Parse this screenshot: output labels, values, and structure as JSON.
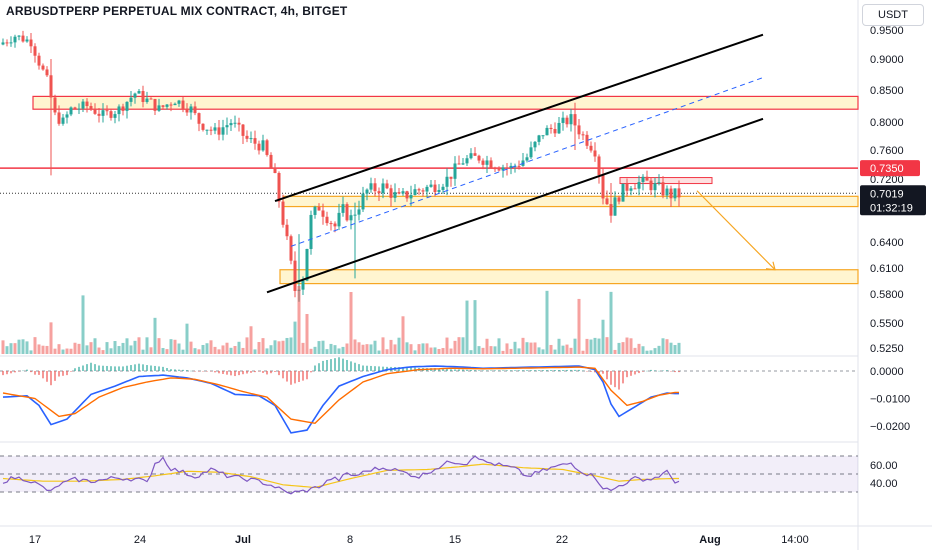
{
  "header": {
    "title": "ARBUSDTPERP PERPETUAL MIX CONTRACT, 4h, BITGET",
    "currency": "USDT"
  },
  "colors": {
    "up": "#26a69a",
    "down": "#ef5350",
    "channel": "#000000",
    "midline": "#2962ff",
    "zone_fill": "#fff3c4",
    "zone_border": "#f6a623",
    "resistance": "#f23645",
    "macd": "#2962ff",
    "signal": "#ff6d00",
    "rsi": "#7e57c2",
    "rsi_ma": "#f5c518"
  },
  "price_axis": {
    "ticks": [
      "0.9500",
      "0.9000",
      "0.8500",
      "0.8000",
      "0.7600",
      "0.7200",
      "0.6400",
      "0.6100",
      "0.5800",
      "0.5500",
      "0.5250"
    ],
    "resistance_label": "0.7350",
    "last_price_label": "0.7019",
    "countdown_label": "01:32:19"
  },
  "macd_axis": {
    "ticks": [
      "0.0000",
      "−0.0100",
      "−0.0200"
    ]
  },
  "rsi_axis": {
    "ticks": [
      "60.00",
      "40.00"
    ]
  },
  "time_axis": {
    "labels": [
      "17",
      "24",
      "Jul",
      "8",
      "15",
      "22",
      "Aug",
      "14:00"
    ],
    "bold": [
      false,
      false,
      true,
      false,
      false,
      false,
      true,
      false
    ]
  },
  "chart_data": [
    {
      "type": "candlestick",
      "name": "ARBUSDTPERP 4h",
      "y_axis": "price (USDT)",
      "x_ticks": [
        "17",
        "24",
        "Jul",
        "8",
        "15",
        "22",
        "Aug",
        "14:00"
      ],
      "key_path": [
        [
          0,
          0.925
        ],
        [
          4,
          0.94
        ],
        [
          8,
          0.93
        ],
        [
          10,
          0.895
        ],
        [
          12,
          0.865
        ],
        [
          14,
          0.81
        ],
        [
          16,
          0.8
        ],
        [
          18,
          0.82
        ],
        [
          22,
          0.825
        ],
        [
          26,
          0.81
        ],
        [
          30,
          0.82
        ],
        [
          34,
          0.845
        ],
        [
          38,
          0.83
        ],
        [
          40,
          0.82
        ],
        [
          44,
          0.835
        ],
        [
          48,
          0.82
        ],
        [
          50,
          0.8
        ],
        [
          54,
          0.785
        ],
        [
          58,
          0.8
        ],
        [
          62,
          0.775
        ],
        [
          66,
          0.765
        ],
        [
          69,
          0.72
        ],
        [
          72,
          0.64
        ],
        [
          74,
          0.585
        ],
        [
          76,
          0.6
        ],
        [
          78,
          0.67
        ],
        [
          80,
          0.685
        ],
        [
          84,
          0.66
        ],
        [
          86,
          0.68
        ],
        [
          88,
          0.67
        ],
        [
          92,
          0.705
        ],
        [
          96,
          0.71
        ],
        [
          100,
          0.695
        ],
        [
          104,
          0.705
        ],
        [
          108,
          0.71
        ],
        [
          112,
          0.72
        ],
        [
          116,
          0.745
        ],
        [
          120,
          0.75
        ],
        [
          124,
          0.74
        ],
        [
          128,
          0.735
        ],
        [
          132,
          0.75
        ],
        [
          136,
          0.785
        ],
        [
          140,
          0.795
        ],
        [
          143,
          0.805
        ],
        [
          146,
          0.78
        ],
        [
          149,
          0.76
        ],
        [
          151,
          0.7
        ],
        [
          153,
          0.68
        ],
        [
          155,
          0.7
        ],
        [
          158,
          0.715
        ],
        [
          162,
          0.715
        ],
        [
          166,
          0.705
        ],
        [
          168,
          0.7
        ]
      ],
      "wick_extremes": [
        {
          "x": 12,
          "low": 0.725,
          "high": 0.9
        },
        {
          "x": 74,
          "low": 0.572,
          "high": 0.65
        },
        {
          "x": 88,
          "low": 0.598,
          "high": 0.69
        },
        {
          "x": 143,
          "low": 0.76,
          "high": 0.83
        },
        {
          "x": 152,
          "low": 0.678,
          "high": 0.715
        }
      ],
      "annotations": {
        "resistance_line": 0.735,
        "last_price": 0.7019,
        "zones": [
          [
            0.82,
            0.84
          ],
          [
            0.685,
            0.698
          ],
          [
            0.592,
            0.608
          ]
        ],
        "channel": {
          "upper": [
            [
              68,
              0.692
            ],
            [
              190,
              0.942
            ]
          ],
          "middle": [
            [
              72,
              0.635
            ],
            [
              190,
              0.87
            ]
          ],
          "lower": [
            [
              66,
              0.582
            ],
            [
              190,
              0.805
            ]
          ]
        },
        "projection_arrow": [
          [
            170,
            0.7
          ],
          [
            188,
            0.608
          ]
        ]
      }
    },
    {
      "type": "bar",
      "name": "Volume",
      "series_note": "relative volume bars coloured by candle direction"
    },
    {
      "type": "line",
      "name": "MACD",
      "y_ticks": [
        "0.0000",
        "−0.0100",
        "−0.0200"
      ],
      "ylim": [
        -0.024,
        0.004
      ],
      "macd_path": [
        [
          0,
          -0.0095
        ],
        [
          6,
          -0.009
        ],
        [
          9,
          -0.0125
        ],
        [
          12,
          -0.0195
        ],
        [
          16,
          -0.0175
        ],
        [
          22,
          -0.0085
        ],
        [
          28,
          -0.0055
        ],
        [
          34,
          -0.002
        ],
        [
          40,
          -0.0015
        ],
        [
          46,
          -0.0025
        ],
        [
          52,
          -0.0045
        ],
        [
          58,
          -0.0085
        ],
        [
          64,
          -0.009
        ],
        [
          68,
          -0.0125
        ],
        [
          72,
          -0.0225
        ],
        [
          76,
          -0.0215
        ],
        [
          80,
          -0.0125
        ],
        [
          84,
          -0.0055
        ],
        [
          90,
          -0.002
        ],
        [
          96,
          0.0005
        ],
        [
          102,
          0.0015
        ],
        [
          108,
          0.0018
        ],
        [
          114,
          0.0015
        ],
        [
          120,
          0.001
        ],
        [
          126,
          0.0012
        ],
        [
          132,
          0.0014
        ],
        [
          138,
          0.0016
        ],
        [
          144,
          0.0018
        ],
        [
          148,
          0.0005
        ],
        [
          150,
          -0.004
        ],
        [
          152,
          -0.012
        ],
        [
          154,
          -0.0165
        ],
        [
          158,
          -0.013
        ],
        [
          162,
          -0.0095
        ],
        [
          166,
          -0.008
        ],
        [
          168,
          -0.0082
        ]
      ],
      "signal_path": [
        [
          0,
          -0.008
        ],
        [
          8,
          -0.01
        ],
        [
          14,
          -0.0165
        ],
        [
          18,
          -0.0155
        ],
        [
          24,
          -0.0095
        ],
        [
          30,
          -0.006
        ],
        [
          36,
          -0.004
        ],
        [
          42,
          -0.0025
        ],
        [
          48,
          -0.003
        ],
        [
          54,
          -0.005
        ],
        [
          60,
          -0.0075
        ],
        [
          66,
          -0.0095
        ],
        [
          72,
          -0.0175
        ],
        [
          78,
          -0.019
        ],
        [
          84,
          -0.0105
        ],
        [
          90,
          -0.004
        ],
        [
          96,
          -0.001
        ],
        [
          104,
          0.0005
        ],
        [
          112,
          0.001
        ],
        [
          120,
          0.0008
        ],
        [
          128,
          0.001
        ],
        [
          136,
          0.0012
        ],
        [
          144,
          0.0014
        ],
        [
          148,
          0.001
        ],
        [
          152,
          -0.007
        ],
        [
          156,
          -0.0125
        ],
        [
          160,
          -0.011
        ],
        [
          164,
          -0.0088
        ],
        [
          168,
          -0.0078
        ]
      ]
    },
    {
      "type": "line",
      "name": "RSI",
      "y_ticks": [
        "60.00",
        "40.00"
      ],
      "bands": [
        70,
        50,
        30
      ],
      "ylim": [
        28,
        73
      ],
      "rsi_path": [
        [
          0,
          42
        ],
        [
          3,
          46
        ],
        [
          6,
          44
        ],
        [
          8,
          40
        ],
        [
          10,
          35
        ],
        [
          12,
          30
        ],
        [
          14,
          38
        ],
        [
          18,
          44
        ],
        [
          22,
          42
        ],
        [
          26,
          44
        ],
        [
          28,
          46
        ],
        [
          31,
          45
        ],
        [
          34,
          44
        ],
        [
          36,
          40
        ],
        [
          38,
          62
        ],
        [
          40,
          68
        ],
        [
          42,
          56
        ],
        [
          45,
          52
        ],
        [
          48,
          47
        ],
        [
          52,
          55
        ],
        [
          56,
          48
        ],
        [
          60,
          45
        ],
        [
          64,
          42
        ],
        [
          68,
          36
        ],
        [
          71,
          29
        ],
        [
          74,
          30
        ],
        [
          77,
          33
        ],
        [
          80,
          38
        ],
        [
          82,
          45
        ],
        [
          84,
          44
        ],
        [
          86,
          50
        ],
        [
          88,
          48
        ],
        [
          92,
          55
        ],
        [
          96,
          57
        ],
        [
          100,
          52
        ],
        [
          104,
          47
        ],
        [
          108,
          56
        ],
        [
          112,
          64
        ],
        [
          116,
          62
        ],
        [
          118,
          72
        ],
        [
          120,
          64
        ],
        [
          124,
          60
        ],
        [
          128,
          56
        ],
        [
          131,
          47
        ],
        [
          134,
          52
        ],
        [
          138,
          58
        ],
        [
          142,
          62
        ],
        [
          145,
          52
        ],
        [
          148,
          47
        ],
        [
          150,
          35
        ],
        [
          152,
          31
        ],
        [
          154,
          37
        ],
        [
          158,
          45
        ],
        [
          162,
          44
        ],
        [
          166,
          52
        ],
        [
          168,
          42
        ]
      ],
      "rsi_ma_path": [
        [
          0,
          45
        ],
        [
          10,
          42
        ],
        [
          20,
          42
        ],
        [
          30,
          44
        ],
        [
          38,
          48
        ],
        [
          46,
          53
        ],
        [
          54,
          52
        ],
        [
          62,
          47
        ],
        [
          70,
          38
        ],
        [
          78,
          35
        ],
        [
          86,
          44
        ],
        [
          96,
          54
        ],
        [
          106,
          55
        ],
        [
          114,
          58
        ],
        [
          120,
          61
        ],
        [
          130,
          57
        ],
        [
          140,
          55
        ],
        [
          148,
          48
        ],
        [
          154,
          42
        ],
        [
          160,
          44
        ],
        [
          168,
          45
        ]
      ]
    }
  ]
}
